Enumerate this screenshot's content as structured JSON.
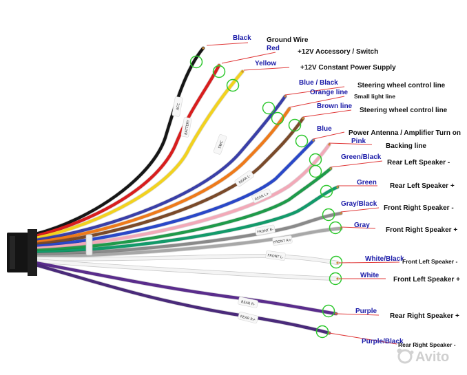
{
  "wires": [
    {
      "id": "black",
      "label": "Black",
      "label_color": "#1b1ba8",
      "desc": "Ground Wire",
      "wire_color": "#161616"
    },
    {
      "id": "red",
      "label": "Red",
      "label_color": "#1b1ba8",
      "desc": "+12V Accessory / Switch",
      "wire_color": "#d81e1e"
    },
    {
      "id": "yellow",
      "label": "Yellow",
      "label_color": "#1b1ba8",
      "desc": "+12V Constant Power Supply",
      "wire_color": "#f2d21f"
    },
    {
      "id": "blue-black",
      "label": "Blue / Black",
      "label_color": "#1b1ba8",
      "desc": "Steering wheel control line",
      "wire_color": "#3a3fa8"
    },
    {
      "id": "orange",
      "label": "Orange line",
      "label_color": "#1b1ba8",
      "desc": "Small light line",
      "wire_color": "#ee7a1a"
    },
    {
      "id": "brown",
      "label": "Brown line",
      "label_color": "#1b1ba8",
      "desc": "Steering wheel control line",
      "wire_color": "#7a4a2a"
    },
    {
      "id": "blue",
      "label": "Blue",
      "label_color": "#1b1ba8",
      "desc": "Power Antenna / Amplifier Turn on",
      "wire_color": "#2a48c8"
    },
    {
      "id": "pink",
      "label": "Pink",
      "label_color": "#1b1ba8",
      "desc": "Backing line",
      "wire_color": "#f2a9b8"
    },
    {
      "id": "green-black",
      "label": "Green/Black",
      "label_color": "#1b1ba8",
      "desc": "Rear Left Speaker -",
      "wire_color": "#1f9a4a"
    },
    {
      "id": "green",
      "label": "Green",
      "label_color": "#1b1ba8",
      "desc": "Rear Left Speaker +",
      "wire_color": "#139a6a"
    },
    {
      "id": "gray-black",
      "label": "Gray/Black",
      "label_color": "#1b1ba8",
      "desc": "Front Right Speaker -",
      "wire_color": "#8a8a8a"
    },
    {
      "id": "gray",
      "label": "Gray",
      "label_color": "#1b1ba8",
      "desc": "Front Right Speaker +",
      "wire_color": "#a8a8a8"
    },
    {
      "id": "white-black",
      "label": "White/Black",
      "label_color": "#1b1ba8",
      "desc": "Front Left Speaker -",
      "wire_color": "#f4f4f4"
    },
    {
      "id": "white",
      "label": "White",
      "label_color": "#1b1ba8",
      "desc": "Front Left Speaker +",
      "wire_color": "#f4f4f4"
    },
    {
      "id": "purple",
      "label": "Purple",
      "label_color": "#1b1ba8",
      "desc": "Rear Right Speaker +",
      "wire_color": "#5a2d8c"
    },
    {
      "id": "purple-black",
      "label": "Purple/Black",
      "label_color": "#1b1ba8",
      "desc": "Rear Right Speaker -",
      "wire_color": "#4a2a7a"
    }
  ],
  "sleeve_tags": [
    "ACC",
    "BATTERY",
    "SWC",
    "REAR L-",
    "REAR L+",
    "FRONT R-",
    "FRONT R+",
    "FRONT L-",
    "REAR R-",
    "REAR R+"
  ],
  "watermark": "Avito",
  "colors": {
    "highlight_circle": "#2ec82e",
    "leader_line": "#e03a3a",
    "connector": "#1a1a1a"
  }
}
